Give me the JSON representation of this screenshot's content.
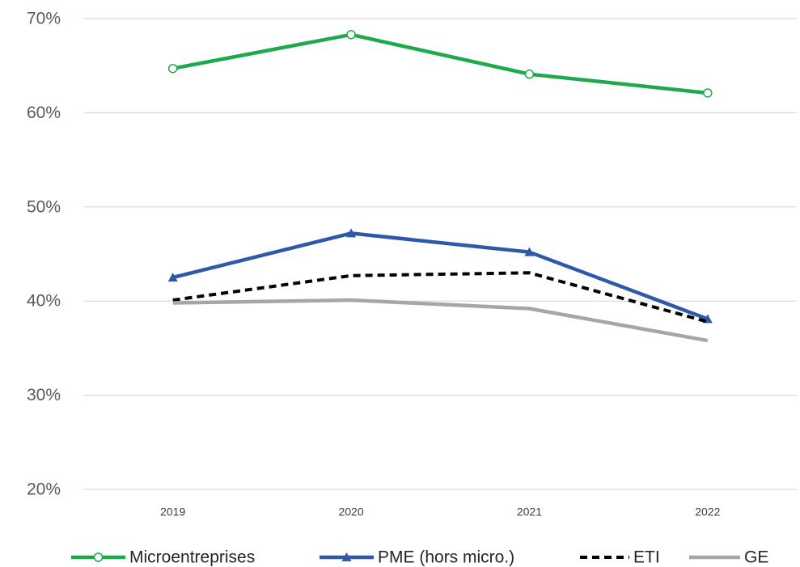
{
  "chart_data": {
    "type": "line",
    "categories": [
      "2019",
      "2020",
      "2021",
      "2022"
    ],
    "series": [
      {
        "name": "Microentreprises",
        "color": "#1ea94a",
        "marker": "circle",
        "dashed": false,
        "values": [
          64.7,
          68.3,
          64.1,
          62.1
        ]
      },
      {
        "name": "PME (hors micro.)",
        "color": "#2e58a8",
        "marker": "triangle",
        "dashed": false,
        "values": [
          42.5,
          47.2,
          45.2,
          38.1
        ]
      },
      {
        "name": "ETI",
        "color": "#000000",
        "marker": null,
        "dashed": true,
        "values": [
          40.1,
          42.7,
          43.0,
          37.8
        ]
      },
      {
        "name": "GE",
        "color": "#a6a6a6",
        "marker": null,
        "dashed": false,
        "values": [
          39.8,
          40.1,
          39.2,
          35.8
        ]
      }
    ],
    "ylim": [
      20,
      70
    ],
    "yticks": [
      {
        "value": 20,
        "label": "20%"
      },
      {
        "value": 30,
        "label": "30%"
      },
      {
        "value": 40,
        "label": "40%"
      },
      {
        "value": 50,
        "label": "50%"
      },
      {
        "value": 60,
        "label": "60%"
      },
      {
        "value": 70,
        "label": "70%"
      }
    ],
    "grid": true,
    "legend": "bottom"
  }
}
